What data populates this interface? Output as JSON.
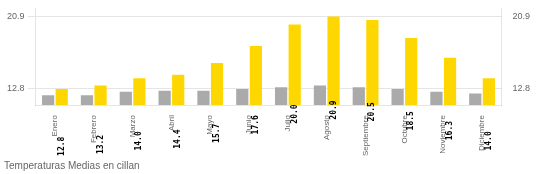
{
  "chart_data": {
    "type": "bar",
    "title": "Temperaturas Medias en cillan",
    "categories": [
      "Enero",
      "Febrero",
      "Marzo",
      "Abril",
      "Mayo",
      "Junio",
      "Julio",
      "Agosto",
      "Septiembre",
      "Octubre",
      "Noviembre",
      "Diciembre"
    ],
    "series": [
      {
        "color": "#AAAAAA",
        "values": [
          12.1,
          12.1,
          12.5,
          12.6,
          12.6,
          12.8,
          13.0,
          13.2,
          13.0,
          12.8,
          12.5,
          12.3
        ]
      },
      {
        "color": "#FFD700",
        "values": [
          12.8,
          13.2,
          14.0,
          14.4,
          15.7,
          17.6,
          20.0,
          20.9,
          20.5,
          18.5,
          16.3,
          14.0
        ],
        "value_labels": [
          "12.8",
          "13.2",
          "14.0",
          "14.4",
          "15.7",
          "17.6",
          "20.0",
          "20.9",
          "20.5",
          "18.5",
          "16.3",
          "14.0"
        ],
        "data_labels": true
      }
    ],
    "ylim": [
      11.0,
      21.8
    ],
    "yticks": [
      12.8,
      20.9
    ],
    "y2lim": [
      11.0,
      21.8
    ],
    "y2ticks": [
      12.8,
      20.9
    ],
    "grid": true
  }
}
